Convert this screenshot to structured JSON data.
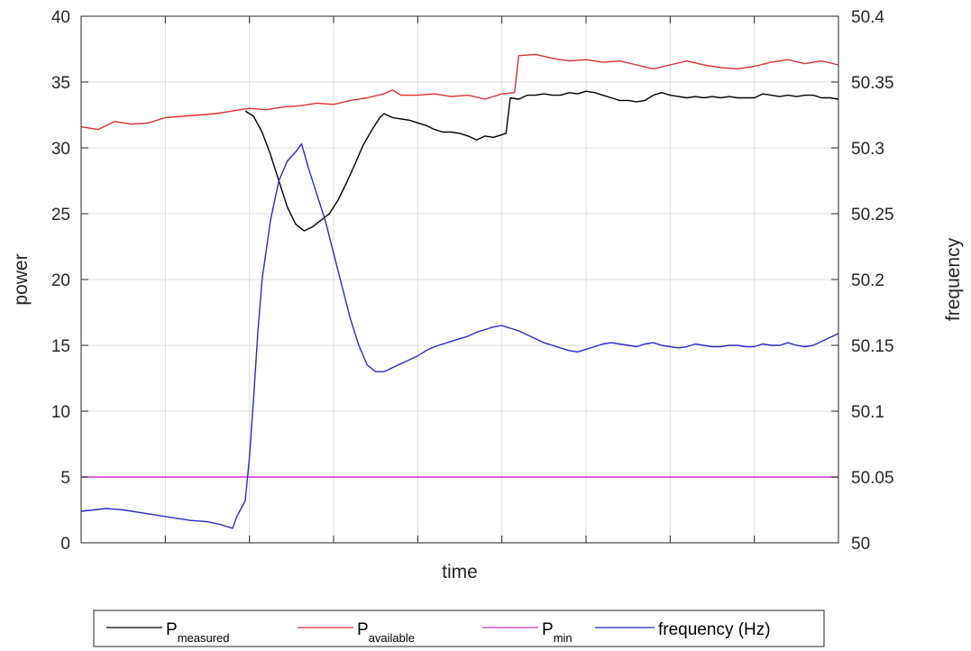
{
  "chart_data": {
    "type": "line",
    "xlabel": "time",
    "ylabel": "power",
    "y2label": "frequency",
    "ylim": [
      0,
      40
    ],
    "y2lim": [
      50,
      50.4
    ],
    "xlim": [
      0,
      9
    ],
    "x_tick_labels": "none",
    "grid": true,
    "yticks": [
      "0",
      "5",
      "10",
      "15",
      "20",
      "25",
      "30",
      "35",
      "40"
    ],
    "y2ticks": [
      "50",
      "50.05",
      "50.1",
      "50.15",
      "50.2",
      "50.25",
      "50.3",
      "50.35",
      "50.4"
    ],
    "legend": {
      "placement": "bottom",
      "entries": [
        {
          "main": "P",
          "sub": "measured"
        },
        {
          "main": "P",
          "sub": "available"
        },
        {
          "main": "P",
          "sub": "min"
        },
        {
          "main": "frequency (Hz)",
          "sub": ""
        }
      ]
    },
    "series": [
      {
        "axis": "left",
        "color": "#000000",
        "points": [
          [
            1.95,
            32.8
          ],
          [
            2.05,
            32.4
          ],
          [
            2.15,
            31.2
          ],
          [
            2.25,
            29.5
          ],
          [
            2.35,
            27.5
          ],
          [
            2.45,
            25.5
          ],
          [
            2.55,
            24.2
          ],
          [
            2.65,
            23.7
          ],
          [
            2.75,
            24.0
          ],
          [
            2.85,
            24.5
          ],
          [
            2.95,
            25.0
          ],
          [
            3.05,
            26.0
          ],
          [
            3.15,
            27.3
          ],
          [
            3.25,
            28.7
          ],
          [
            3.35,
            30.2
          ],
          [
            3.45,
            31.3
          ],
          [
            3.55,
            32.3
          ],
          [
            3.6,
            32.6
          ],
          [
            3.7,
            32.3
          ],
          [
            3.8,
            32.2
          ],
          [
            3.9,
            32.1
          ],
          [
            4.0,
            31.9
          ],
          [
            4.1,
            31.7
          ],
          [
            4.2,
            31.4
          ],
          [
            4.3,
            31.2
          ],
          [
            4.4,
            31.2
          ],
          [
            4.5,
            31.1
          ],
          [
            4.6,
            30.9
          ],
          [
            4.7,
            30.6
          ],
          [
            4.8,
            30.9
          ],
          [
            4.9,
            30.8
          ],
          [
            5.0,
            31.0
          ],
          [
            5.05,
            31.1
          ],
          [
            5.1,
            33.8
          ],
          [
            5.2,
            33.7
          ],
          [
            5.3,
            34.0
          ],
          [
            5.4,
            34.0
          ],
          [
            5.5,
            34.1
          ],
          [
            5.6,
            34.0
          ],
          [
            5.7,
            34.0
          ],
          [
            5.8,
            34.2
          ],
          [
            5.9,
            34.1
          ],
          [
            6.0,
            34.3
          ],
          [
            6.1,
            34.2
          ],
          [
            6.2,
            34.0
          ],
          [
            6.3,
            33.8
          ],
          [
            6.4,
            33.6
          ],
          [
            6.5,
            33.6
          ],
          [
            6.6,
            33.5
          ],
          [
            6.7,
            33.6
          ],
          [
            6.8,
            34.0
          ],
          [
            6.9,
            34.2
          ],
          [
            7.0,
            34.0
          ],
          [
            7.1,
            33.9
          ],
          [
            7.2,
            33.8
          ],
          [
            7.3,
            33.9
          ],
          [
            7.4,
            33.8
          ],
          [
            7.5,
            33.9
          ],
          [
            7.6,
            33.8
          ],
          [
            7.7,
            33.9
          ],
          [
            7.8,
            33.8
          ],
          [
            7.9,
            33.8
          ],
          [
            8.0,
            33.8
          ],
          [
            8.1,
            34.1
          ],
          [
            8.2,
            34.0
          ],
          [
            8.3,
            33.9
          ],
          [
            8.4,
            34.0
          ],
          [
            8.5,
            33.9
          ],
          [
            8.6,
            34.0
          ],
          [
            8.7,
            34.0
          ],
          [
            8.8,
            33.8
          ],
          [
            8.9,
            33.8
          ],
          [
            9.0,
            33.7
          ]
        ]
      },
      {
        "axis": "left",
        "color": "#e03030",
        "points": [
          [
            0.0,
            31.6
          ],
          [
            0.2,
            31.4
          ],
          [
            0.3,
            31.7
          ],
          [
            0.4,
            32.0
          ],
          [
            0.6,
            31.8
          ],
          [
            0.8,
            31.9
          ],
          [
            1.0,
            32.3
          ],
          [
            1.2,
            32.4
          ],
          [
            1.4,
            32.5
          ],
          [
            1.6,
            32.6
          ],
          [
            1.8,
            32.8
          ],
          [
            2.0,
            33.0
          ],
          [
            2.2,
            32.9
          ],
          [
            2.4,
            33.1
          ],
          [
            2.6,
            33.2
          ],
          [
            2.8,
            33.4
          ],
          [
            3.0,
            33.3
          ],
          [
            3.2,
            33.6
          ],
          [
            3.4,
            33.8
          ],
          [
            3.6,
            34.1
          ],
          [
            3.7,
            34.4
          ],
          [
            3.8,
            34.0
          ],
          [
            4.0,
            34.0
          ],
          [
            4.2,
            34.1
          ],
          [
            4.4,
            33.9
          ],
          [
            4.6,
            34.0
          ],
          [
            4.8,
            33.7
          ],
          [
            5.0,
            34.1
          ],
          [
            5.15,
            34.2
          ],
          [
            5.2,
            37.0
          ],
          [
            5.4,
            37.1
          ],
          [
            5.6,
            36.8
          ],
          [
            5.8,
            36.6
          ],
          [
            6.0,
            36.7
          ],
          [
            6.2,
            36.5
          ],
          [
            6.4,
            36.6
          ],
          [
            6.6,
            36.3
          ],
          [
            6.8,
            36.0
          ],
          [
            7.0,
            36.3
          ],
          [
            7.2,
            36.6
          ],
          [
            7.4,
            36.3
          ],
          [
            7.6,
            36.1
          ],
          [
            7.8,
            36.0
          ],
          [
            8.0,
            36.2
          ],
          [
            8.2,
            36.5
          ],
          [
            8.4,
            36.7
          ],
          [
            8.6,
            36.4
          ],
          [
            8.8,
            36.6
          ],
          [
            9.0,
            36.3
          ]
        ]
      },
      {
        "axis": "left",
        "color": "#cc33cc",
        "points": [
          [
            0.0,
            5.0
          ],
          [
            9.0,
            5.0
          ]
        ]
      },
      {
        "axis": "right",
        "color": "#2a2ad0",
        "points": [
          [
            0.0,
            50.024
          ],
          [
            0.15,
            50.025
          ],
          [
            0.3,
            50.026
          ],
          [
            0.5,
            50.025
          ],
          [
            0.7,
            50.023
          ],
          [
            0.9,
            50.021
          ],
          [
            1.1,
            50.019
          ],
          [
            1.3,
            50.017
          ],
          [
            1.5,
            50.016
          ],
          [
            1.65,
            50.014
          ],
          [
            1.75,
            50.012
          ],
          [
            1.8,
            50.011
          ],
          [
            1.85,
            50.02
          ],
          [
            1.95,
            50.032
          ],
          [
            2.0,
            50.065
          ],
          [
            2.05,
            50.11
          ],
          [
            2.1,
            50.16
          ],
          [
            2.15,
            50.2
          ],
          [
            2.25,
            50.245
          ],
          [
            2.35,
            50.275
          ],
          [
            2.45,
            50.29
          ],
          [
            2.55,
            50.297
          ],
          [
            2.62,
            50.303
          ],
          [
            2.7,
            50.285
          ],
          [
            2.8,
            50.265
          ],
          [
            2.9,
            50.245
          ],
          [
            3.0,
            50.22
          ],
          [
            3.1,
            50.195
          ],
          [
            3.2,
            50.17
          ],
          [
            3.3,
            50.15
          ],
          [
            3.4,
            50.135
          ],
          [
            3.5,
            50.13
          ],
          [
            3.6,
            50.13
          ],
          [
            3.7,
            50.133
          ],
          [
            3.8,
            50.136
          ],
          [
            3.9,
            50.139
          ],
          [
            4.0,
            50.142
          ],
          [
            4.1,
            50.146
          ],
          [
            4.2,
            50.149
          ],
          [
            4.3,
            50.151
          ],
          [
            4.4,
            50.153
          ],
          [
            4.5,
            50.155
          ],
          [
            4.6,
            50.157
          ],
          [
            4.7,
            50.16
          ],
          [
            4.8,
            50.162
          ],
          [
            4.9,
            50.164
          ],
          [
            5.0,
            50.165
          ],
          [
            5.1,
            50.163
          ],
          [
            5.2,
            50.161
          ],
          [
            5.3,
            50.158
          ],
          [
            5.4,
            50.155
          ],
          [
            5.5,
            50.152
          ],
          [
            5.6,
            50.15
          ],
          [
            5.7,
            50.148
          ],
          [
            5.8,
            50.146
          ],
          [
            5.9,
            50.145
          ],
          [
            6.0,
            50.147
          ],
          [
            6.1,
            50.149
          ],
          [
            6.2,
            50.151
          ],
          [
            6.3,
            50.152
          ],
          [
            6.4,
            50.151
          ],
          [
            6.5,
            50.15
          ],
          [
            6.6,
            50.149
          ],
          [
            6.7,
            50.151
          ],
          [
            6.8,
            50.152
          ],
          [
            6.9,
            50.15
          ],
          [
            7.0,
            50.149
          ],
          [
            7.1,
            50.148
          ],
          [
            7.2,
            50.149
          ],
          [
            7.3,
            50.151
          ],
          [
            7.4,
            50.15
          ],
          [
            7.5,
            50.149
          ],
          [
            7.6,
            50.149
          ],
          [
            7.7,
            50.15
          ],
          [
            7.8,
            50.15
          ],
          [
            7.9,
            50.149
          ],
          [
            8.0,
            50.149
          ],
          [
            8.1,
            50.151
          ],
          [
            8.2,
            50.15
          ],
          [
            8.3,
            50.15
          ],
          [
            8.4,
            50.152
          ],
          [
            8.5,
            50.15
          ],
          [
            8.6,
            50.149
          ],
          [
            8.7,
            50.15
          ],
          [
            8.8,
            50.153
          ],
          [
            8.9,
            50.156
          ],
          [
            9.0,
            50.159
          ]
        ]
      }
    ]
  }
}
